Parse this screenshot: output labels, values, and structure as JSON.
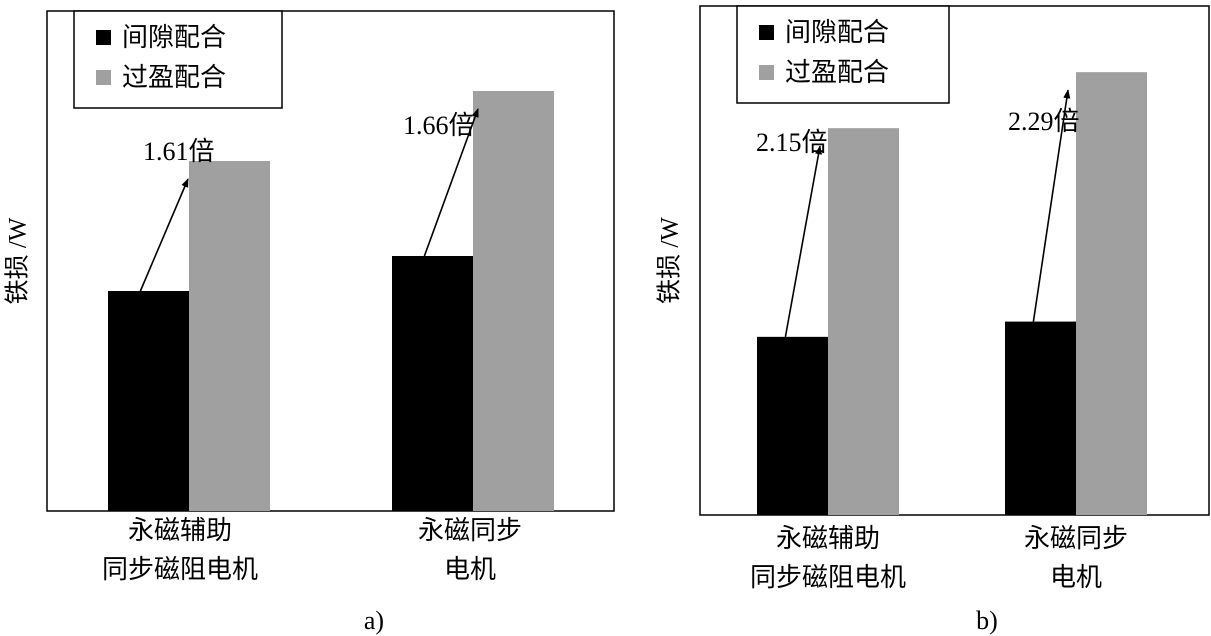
{
  "colors": {
    "clearance": "#000000",
    "interference": "#a0a0a0",
    "frame": "#000000",
    "background": "#ffffff"
  },
  "chart_data": [
    {
      "type": "bar",
      "panel_label": "a)",
      "ylabel": "铁损 /W",
      "categories": [
        [
          "永磁辅助",
          "同步磁阻电机"
        ],
        [
          "永磁同步",
          "电机"
        ]
      ],
      "series": [
        {
          "name": "间隙配合",
          "color": "#000000",
          "values": [
            0.44,
            0.51
          ]
        },
        {
          "name": "过盈配合",
          "color": "#a0a0a0",
          "values": [
            0.7,
            0.84
          ]
        }
      ],
      "ratio_labels": [
        "1.61倍",
        "1.66倍"
      ],
      "ylim": [
        0,
        1
      ],
      "yticks": false,
      "legend": "top-left",
      "grid": false
    },
    {
      "type": "bar",
      "panel_label": "b)",
      "ylabel": "铁损 /W",
      "categories": [
        [
          "永磁辅助",
          "同步磁阻电机"
        ],
        [
          "永磁同步",
          "电机"
        ]
      ],
      "series": [
        {
          "name": "间隙配合",
          "color": "#000000",
          "values": [
            0.35,
            0.38
          ]
        },
        {
          "name": "过盈配合",
          "color": "#a0a0a0",
          "values": [
            0.76,
            0.87
          ]
        }
      ],
      "ratio_labels": [
        "2.15倍",
        "2.29倍"
      ],
      "ylim": [
        0,
        1
      ],
      "yticks": false,
      "legend": "top-left",
      "grid": false
    }
  ]
}
